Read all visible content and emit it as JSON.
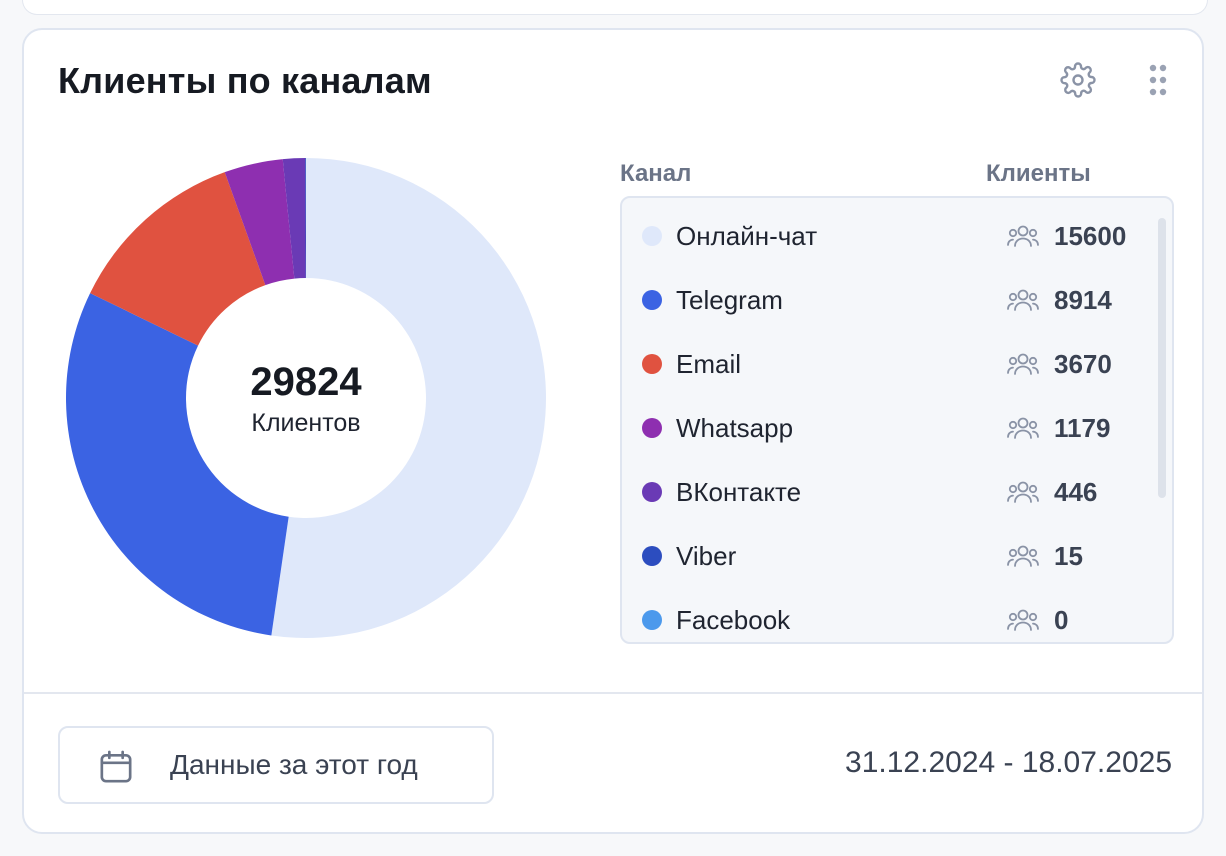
{
  "widget": {
    "title": "Клиенты по каналам",
    "settings_icon": "gear-icon",
    "drag_icon": "drag-handle-icon"
  },
  "chart_data": {
    "type": "pie",
    "title": "",
    "total": {
      "value": "29824",
      "label": "Клиентов"
    },
    "categories": [
      "Онлайн-чат",
      "Telegram",
      "Email",
      "Whatsapp",
      "ВКонтакте",
      "Viber",
      "Facebook"
    ],
    "values": [
      15600,
      8914,
      3670,
      1179,
      446,
      15,
      0
    ],
    "colors": [
      "#dfe8fa",
      "#3b63e3",
      "#e05240",
      "#8e2fb0",
      "#6a3ab5",
      "#2c4dbf",
      "#4c99ec"
    ]
  },
  "legend": {
    "column_channel": "Канал",
    "column_clients": "Клиенты",
    "users_icon": "users-icon",
    "rows": [
      {
        "name": "Онлайн-чат",
        "count": "15600",
        "color": "#dfe8fa"
      },
      {
        "name": "Telegram",
        "count": "8914",
        "color": "#3b63e3"
      },
      {
        "name": "Email",
        "count": "3670",
        "color": "#e05240"
      },
      {
        "name": "Whatsapp",
        "count": "1179",
        "color": "#8e2fb0"
      },
      {
        "name": "ВКонтакте",
        "count": "446",
        "color": "#6a3ab5"
      },
      {
        "name": "Viber",
        "count": "15",
        "color": "#2c4dbf"
      },
      {
        "name": "Facebook",
        "count": "0",
        "color": "#4c99ec"
      }
    ]
  },
  "footer": {
    "period_button_label": "Данные за этот год",
    "calendar_icon": "calendar-icon",
    "date_range": "31.12.2024 - 18.07.2025"
  }
}
